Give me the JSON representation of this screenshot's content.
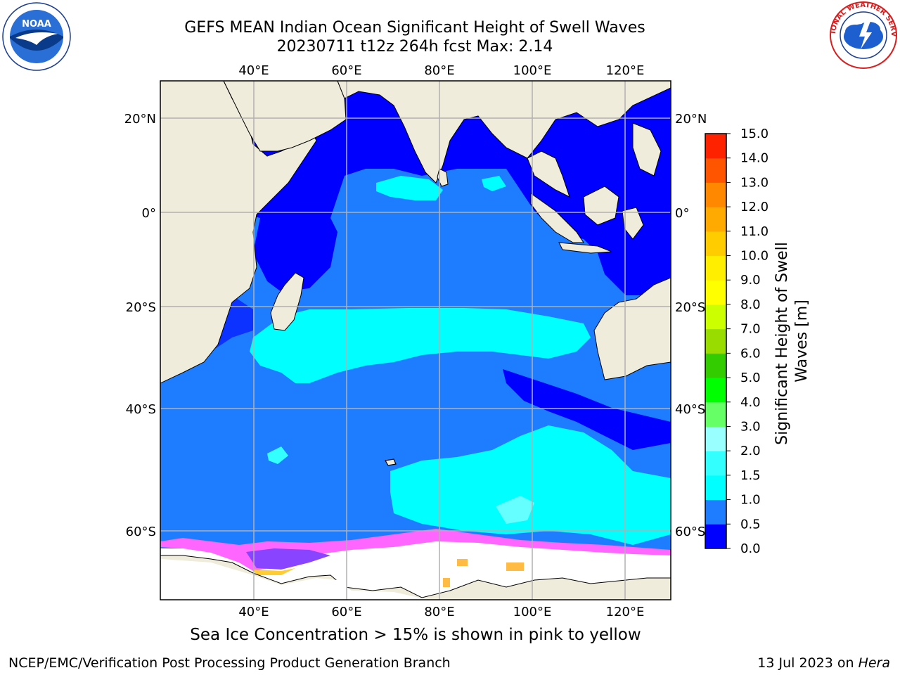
{
  "title": {
    "line1": "GEFS MEAN Indian Ocean Significant Height of Swell Waves",
    "line2": "20230711 t12z 264h fcst   Max: 2.14"
  },
  "map": {
    "lon_ticks": [
      "40°E",
      "60°E",
      "80°E",
      "100°E",
      "120°E"
    ],
    "lat_ticks": [
      "20°N",
      "0°",
      "20°S",
      "40°S",
      "60°S"
    ],
    "colors": {
      "land": "#efecdc",
      "sea_ice_white": "#ffffff",
      "gridline": "#b0b0b0"
    }
  },
  "colorbar": {
    "label": "Significant Height of Swell Waves [m]",
    "label_line1": "Significant Height of Swell",
    "label_line2": "Waves [m]",
    "ticks": [
      "0.0",
      "0.5",
      "1.0",
      "1.5",
      "2.0",
      "3.0",
      "4.0",
      "5.0",
      "6.0",
      "7.0",
      "8.0",
      "9.0",
      "10.0",
      "11.0",
      "12.0",
      "13.0",
      "14.0",
      "15.0"
    ],
    "colors": [
      "#0000ff",
      "#1e7dff",
      "#00ffff",
      "#33ffff",
      "#99ffff",
      "#66ff66",
      "#00ff00",
      "#33cc00",
      "#99dd00",
      "#ccff00",
      "#ffff00",
      "#ffee00",
      "#ffcc00",
      "#ffaa00",
      "#ff8800",
      "#ff5500",
      "#ff2200"
    ]
  },
  "caption": "Sea Ice Concentration > 15% is shown in pink to yellow",
  "footer": {
    "left": "NCEP/EMC/Verification Post Processing Product Generation Branch",
    "right_prefix": "13 Jul 2023 on ",
    "right_host": "Hera"
  },
  "logos": {
    "noaa_text": "NOAA",
    "nws_text": "NATIONAL WEATHER SERVICE"
  }
}
